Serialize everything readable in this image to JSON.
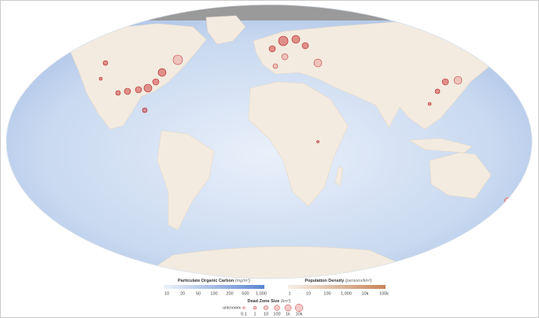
{
  "legend": {
    "organic_carbon": {
      "title": "Particulate Organic Carbon",
      "unit": "(mg/m³)",
      "ticks": [
        "10",
        "20",
        "50",
        "100",
        "200",
        "500",
        "1,000"
      ]
    },
    "population": {
      "title": "Population Density",
      "unit": "(persons/km²)",
      "ticks": [
        "1",
        "10",
        "100",
        "1,000",
        "10k",
        "100k"
      ]
    },
    "dead_zone": {
      "title": "Dead Zone Size",
      "unit": "(km²)",
      "ticks": [
        "unknown",
        "0.1",
        "1",
        "10",
        "100",
        "1k",
        "10k"
      ]
    }
  }
}
